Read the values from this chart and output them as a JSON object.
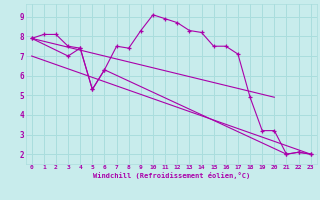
{
  "background_color": "#c8ecec",
  "grid_color": "#aadddd",
  "line_color": "#aa00aa",
  "xlim": [
    -0.5,
    23.5
  ],
  "ylim": [
    1.5,
    9.65
  ],
  "yticks": [
    2,
    3,
    4,
    5,
    6,
    7,
    8,
    9
  ],
  "xticks": [
    0,
    1,
    2,
    3,
    4,
    5,
    6,
    7,
    8,
    9,
    10,
    11,
    12,
    13,
    14,
    15,
    16,
    17,
    18,
    19,
    20,
    21,
    22,
    23
  ],
  "xlabel": "Windchill (Refroidissement éolien,°C)",
  "series_main_x": [
    0,
    1,
    2,
    3,
    4,
    5,
    6,
    7,
    8,
    9,
    10,
    11,
    12,
    13,
    14,
    15,
    16,
    17,
    18,
    19,
    20,
    21,
    22,
    23
  ],
  "series_main_y": [
    7.9,
    8.1,
    8.1,
    7.5,
    7.4,
    5.3,
    6.3,
    7.5,
    7.4,
    8.3,
    9.1,
    8.9,
    8.7,
    8.3,
    8.2,
    7.5,
    7.5,
    7.1,
    4.9,
    3.2,
    3.2,
    2.0,
    2.1,
    2.0
  ],
  "series_sub_x": [
    0,
    3,
    4,
    5,
    6,
    21,
    22,
    23
  ],
  "series_sub_y": [
    7.9,
    7.0,
    7.4,
    5.3,
    6.3,
    2.0,
    2.1,
    2.0
  ],
  "line1_x": [
    0,
    20
  ],
  "line1_y": [
    7.9,
    4.9
  ],
  "line2_x": [
    0,
    23
  ],
  "line2_y": [
    7.0,
    2.0
  ]
}
